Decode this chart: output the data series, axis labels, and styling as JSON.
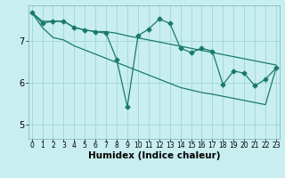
{
  "xlabel": "Humidex (Indice chaleur)",
  "bg_color": "#c8eef0",
  "line_color": "#1a7a6a",
  "grid_color": "#a8d8d8",
  "x_ticks": [
    0,
    1,
    2,
    3,
    4,
    5,
    6,
    7,
    8,
    9,
    10,
    11,
    12,
    13,
    14,
    15,
    16,
    17,
    18,
    19,
    20,
    21,
    22,
    23
  ],
  "y_ticks": [
    5,
    6,
    7
  ],
  "xlim": [
    -0.3,
    23.3
  ],
  "ylim": [
    4.65,
    7.85
  ],
  "data_y": [
    7.68,
    7.42,
    7.47,
    7.47,
    7.32,
    7.26,
    7.22,
    7.18,
    6.55,
    5.42,
    7.12,
    7.28,
    7.52,
    7.42,
    6.82,
    6.72,
    6.82,
    6.75,
    5.95,
    6.28,
    6.22,
    5.92,
    6.08,
    6.35
  ],
  "upper_y": [
    7.68,
    7.47,
    7.47,
    7.47,
    7.32,
    7.26,
    7.22,
    7.22,
    7.18,
    7.12,
    7.07,
    7.02,
    6.97,
    6.92,
    6.87,
    6.82,
    6.77,
    6.72,
    6.67,
    6.62,
    6.57,
    6.52,
    6.47,
    6.42
  ],
  "lower_y": [
    7.68,
    7.32,
    7.08,
    7.02,
    6.88,
    6.78,
    6.68,
    6.58,
    6.48,
    6.38,
    6.28,
    6.18,
    6.08,
    5.98,
    5.88,
    5.82,
    5.76,
    5.72,
    5.67,
    5.62,
    5.57,
    5.52,
    5.47,
    6.35
  ],
  "marker": "D",
  "markersize": 2.5,
  "linewidth": 0.9,
  "tick_fontsize": 5.5,
  "xlabel_fontsize": 7.5,
  "ylabel_fontsize": 7.5
}
